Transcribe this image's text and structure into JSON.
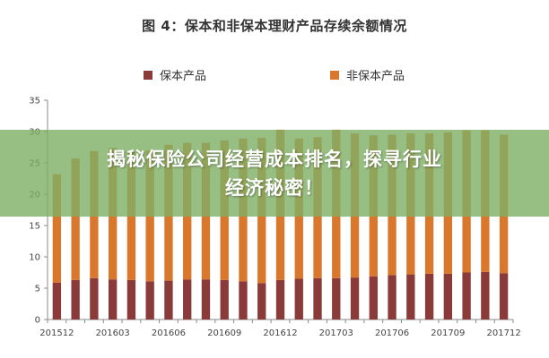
{
  "banner": {
    "line1": "揭秘保险公司经营成本排名，探寻行业",
    "line2": "经济秘密！"
  },
  "chart_data": {
    "type": "bar",
    "stacked": true,
    "title": "图 4：保本和非保本理财产品存续余额情况",
    "categories": [
      "201512",
      "201601",
      "201602",
      "201603",
      "201604",
      "201605",
      "201606",
      "201607",
      "201608",
      "201609",
      "201610",
      "201611",
      "201612",
      "201701",
      "201702",
      "201703",
      "201704",
      "201705",
      "201706",
      "201707",
      "201708",
      "201709",
      "201710",
      "201711",
      "201712"
    ],
    "x_tick_labels": [
      "201512",
      "201603",
      "201606",
      "201609",
      "201612",
      "201703",
      "201706",
      "201709",
      "201712"
    ],
    "series": [
      {
        "name": "保本产品",
        "color": "#8B3A3A",
        "values": [
          5.9,
          6.3,
          6.6,
          6.4,
          6.3,
          6.1,
          6.2,
          6.4,
          6.4,
          6.3,
          6.1,
          5.8,
          6.3,
          6.5,
          6.6,
          6.6,
          6.7,
          6.9,
          7.1,
          7.2,
          7.3,
          7.3,
          7.5,
          7.6,
          7.4
        ]
      },
      {
        "name": "非保本产品",
        "color": "#D9782D",
        "values": [
          17.3,
          19.4,
          20.3,
          21.0,
          20.4,
          20.9,
          21.7,
          21.8,
          21.8,
          22.3,
          22.8,
          23.2,
          24.0,
          22.4,
          22.5,
          23.7,
          23.0,
          22.5,
          22.4,
          22.5,
          22.4,
          22.6,
          22.7,
          22.6,
          22.1
        ]
      }
    ],
    "ylim": [
      0,
      35
    ],
    "yticks": [
      0,
      5,
      10,
      15,
      20,
      25,
      30,
      35
    ],
    "legend_position": "top-center",
    "grid": false
  }
}
